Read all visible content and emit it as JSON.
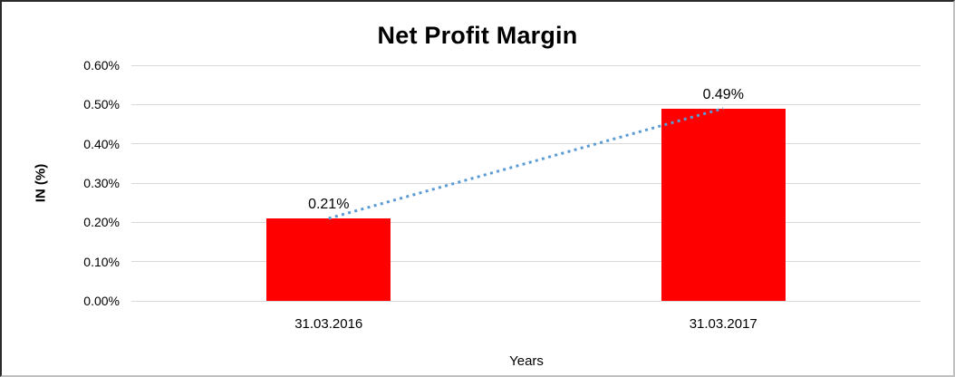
{
  "chart_data": {
    "type": "bar",
    "title": "Net Profit Margin",
    "xlabel": "Years",
    "ylabel": "IN (%)",
    "categories": [
      "31.03.2016",
      "31.03.2017"
    ],
    "values": [
      0.21,
      0.49
    ],
    "value_labels": [
      "0.21%",
      "0.49%"
    ],
    "ylim": [
      0,
      0.6
    ],
    "yticks": [
      {
        "value": 0.6,
        "label": "0.60%"
      },
      {
        "value": 0.5,
        "label": "0.50%"
      },
      {
        "value": 0.4,
        "label": "0.40%"
      },
      {
        "value": 0.3,
        "label": "0.30%"
      },
      {
        "value": 0.2,
        "label": "0.20%"
      },
      {
        "value": 0.1,
        "label": "0.10%"
      },
      {
        "value": 0.0,
        "label": "0.00%"
      }
    ],
    "grid": "horizontal",
    "legend": "none",
    "trendline": {
      "style": "dotted",
      "connects": "bar-tops",
      "from_value": 0.21,
      "to_value": 0.49
    }
  },
  "colors": {
    "bar": "#FF0000",
    "trendline": "#5B9BD5",
    "gridline": "#D9D9D9",
    "text": "#000000",
    "title": "#000000",
    "background": "#FFFFFF",
    "border_dark": "#2B2B2B",
    "border_light": "#C0C0C0"
  }
}
